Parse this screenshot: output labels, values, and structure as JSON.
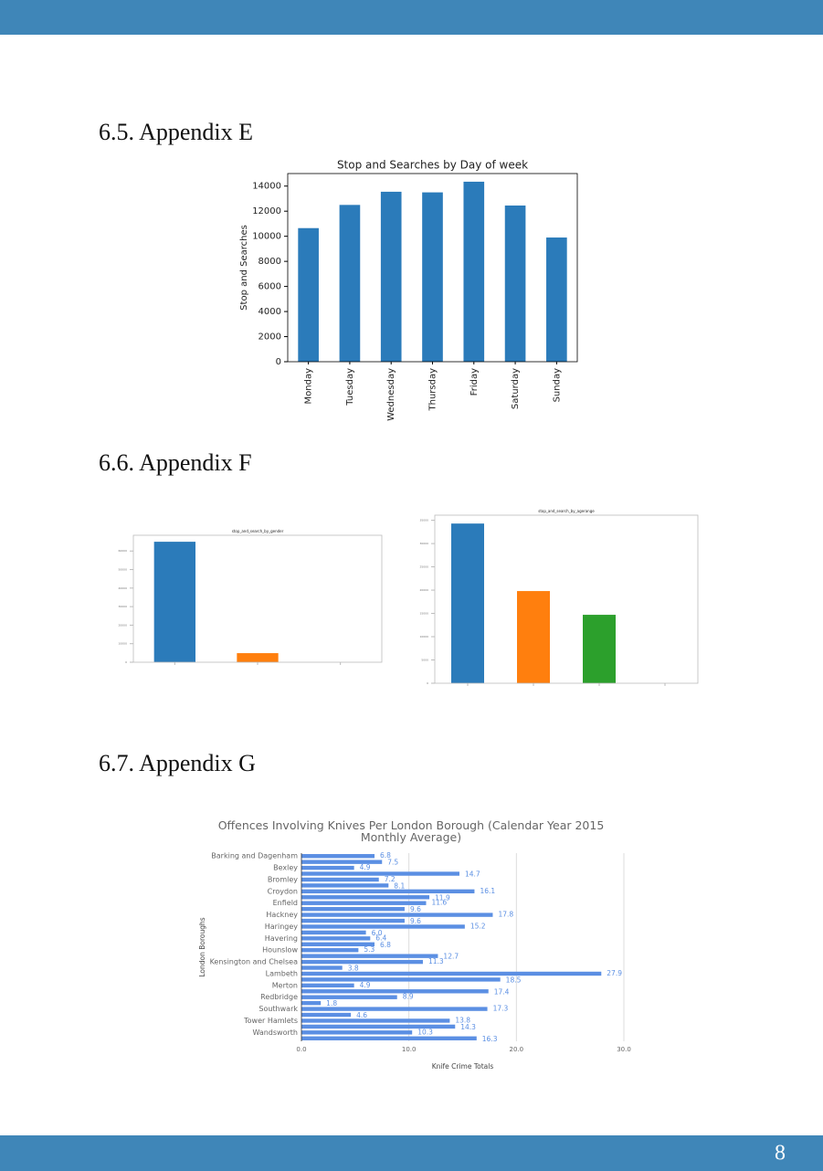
{
  "headings": [
    "6.5. Appendix E",
    "6.6. Appendix F",
    "6.7. Appendix G"
  ],
  "page_number": 8,
  "chart_data": [
    {
      "type": "bar",
      "title": "Stop and Searches by Day of week",
      "y_label": "Stop and Searches",
      "categories": [
        "Monday",
        "Tuesday",
        "Wednesday",
        "Thursday",
        "Friday",
        "Saturday",
        "Sunday"
      ],
      "values": [
        10650,
        12500,
        13550,
        13500,
        14350,
        12450,
        9900
      ],
      "color": "#2b7bba",
      "ylim": [
        0,
        15000
      ],
      "yticks": [
        0,
        2000,
        4000,
        6000,
        8000,
        10000,
        12000,
        14000
      ],
      "grid": false
    },
    {
      "type": "bar",
      "title": "stop_and_search_by_gender",
      "categories": [
        null,
        null,
        null
      ],
      "values": [
        65000,
        4900,
        0
      ],
      "colors": [
        "#2b7bba",
        "#ff7f0e",
        "#2ca02c"
      ],
      "ylim": [
        0,
        68500
      ],
      "yticks": [
        0,
        10000,
        20000,
        30000,
        40000,
        50000,
        60000
      ],
      "grid": false
    },
    {
      "type": "bar",
      "title": "stop_and_search_by_agerange",
      "categories": [
        null,
        null,
        null,
        null
      ],
      "values": [
        34300,
        19800,
        14700,
        0
      ],
      "colors": [
        "#2b7bba",
        "#ff7f0e",
        "#2ca02c",
        "#d62728"
      ],
      "ylim": [
        0,
        36100
      ],
      "yticks": [
        0,
        5000,
        10000,
        15000,
        20000,
        25000,
        30000,
        35000
      ],
      "grid": false
    },
    {
      "type": "barh",
      "title": "Offences Involving Knives Per London Borough (Calendar Year 2015 Monthly Average)",
      "x_label": "Knife Crime Totals",
      "y_label": "London Boroughs",
      "categories": [
        "Barking and Dagenham",
        null,
        "Bexley",
        null,
        "Bromley",
        null,
        "Croydon",
        null,
        "Enfield",
        null,
        "Hackney",
        null,
        "Haringey",
        null,
        "Havering",
        null,
        "Hounslow",
        null,
        "Kensington and Chelsea",
        null,
        "Lambeth",
        null,
        "Merton",
        null,
        "Redbridge",
        null,
        "Southwark",
        null,
        "Tower Hamlets",
        null,
        "Wandsworth",
        null
      ],
      "values": [
        6.8,
        7.5,
        4.9,
        14.7,
        7.2,
        8.1,
        16.1,
        11.9,
        11.6,
        9.6,
        17.8,
        9.6,
        15.2,
        6.0,
        6.4,
        6.8,
        5.3,
        12.7,
        11.3,
        3.8,
        27.9,
        18.5,
        4.9,
        17.4,
        8.9,
        1.8,
        17.3,
        4.6,
        13.8,
        14.3,
        10.3,
        16.3
      ],
      "value_labels": [
        "6.8",
        "7.5",
        "4.9",
        "14.7",
        "7.2",
        "8.1",
        "16.1",
        "11.9",
        "11.6",
        "9.6",
        "17.8",
        "9.6",
        "15.2",
        "6.0",
        "6.4",
        "6.8",
        "5.3",
        "12.7",
        "11.3",
        "3.8",
        "27.9",
        "18.5",
        "4.9",
        "17.4",
        "8.9",
        "1.8",
        "17.3",
        "4.6",
        "13.8",
        "14.3",
        "10.3",
        "16.3"
      ],
      "color": "#5b8fe3",
      "xlim": [
        0,
        30
      ],
      "xticks": [
        {
          "value": 0,
          "label": "0.0"
        },
        {
          "value": 10,
          "label": "10.0"
        },
        {
          "value": 20,
          "label": "20.0"
        },
        {
          "value": 30,
          "label": "30.0"
        }
      ],
      "grid": true
    }
  ]
}
